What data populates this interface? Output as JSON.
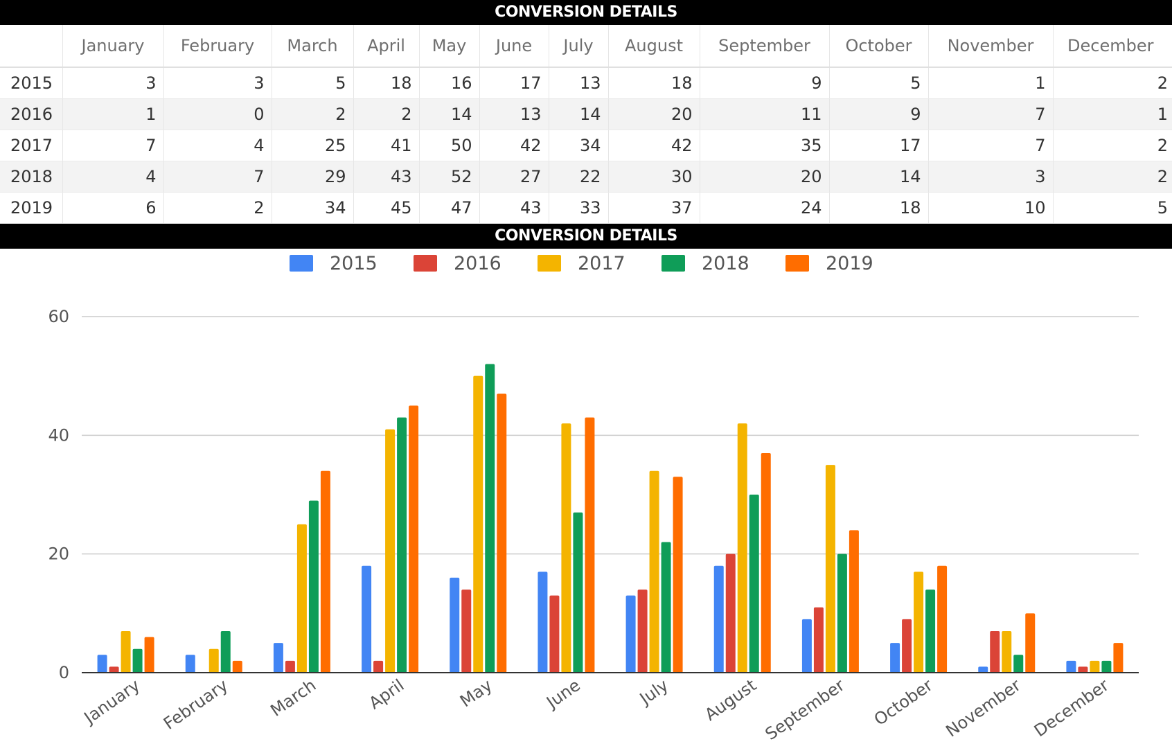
{
  "table_title": "CONVERSION DETAILS",
  "chart_title": "CONVERSION DETAILS",
  "months": [
    "January",
    "February",
    "March",
    "April",
    "May",
    "June",
    "July",
    "August",
    "September",
    "October",
    "November",
    "December"
  ],
  "rows": [
    {
      "year": "2015",
      "values": [
        3,
        3,
        5,
        18,
        16,
        17,
        13,
        18,
        9,
        5,
        1,
        2
      ]
    },
    {
      "year": "2016",
      "values": [
        1,
        0,
        2,
        2,
        14,
        13,
        14,
        20,
        11,
        9,
        7,
        1
      ]
    },
    {
      "year": "2017",
      "values": [
        7,
        4,
        25,
        41,
        50,
        42,
        34,
        42,
        35,
        17,
        7,
        2
      ]
    },
    {
      "year": "2018",
      "values": [
        4,
        7,
        29,
        43,
        52,
        27,
        22,
        30,
        20,
        14,
        3,
        2
      ]
    },
    {
      "year": "2019",
      "values": [
        6,
        2,
        34,
        45,
        47,
        43,
        33,
        37,
        24,
        18,
        10,
        5
      ]
    }
  ],
  "chart_data": {
    "type": "bar",
    "title": "CONVERSION DETAILS",
    "xlabel": "",
    "ylabel": "",
    "categories": [
      "January",
      "February",
      "March",
      "April",
      "May",
      "June",
      "July",
      "August",
      "September",
      "October",
      "November",
      "December"
    ],
    "series": [
      {
        "name": "2015",
        "color": "#4285f4",
        "values": [
          3,
          3,
          5,
          18,
          16,
          17,
          13,
          18,
          9,
          5,
          1,
          2
        ]
      },
      {
        "name": "2016",
        "color": "#db4437",
        "values": [
          1,
          0,
          2,
          2,
          14,
          13,
          14,
          20,
          11,
          9,
          7,
          1
        ]
      },
      {
        "name": "2017",
        "color": "#f4b400",
        "values": [
          7,
          4,
          25,
          41,
          50,
          42,
          34,
          42,
          35,
          17,
          7,
          2
        ]
      },
      {
        "name": "2018",
        "color": "#0f9d58",
        "values": [
          4,
          7,
          29,
          43,
          52,
          27,
          22,
          30,
          20,
          14,
          3,
          2
        ]
      },
      {
        "name": "2019",
        "color": "#ff6d00",
        "values": [
          6,
          2,
          34,
          45,
          47,
          43,
          33,
          37,
          24,
          18,
          10,
          5
        ]
      }
    ],
    "ylim": [
      0,
      60
    ],
    "yticks": [
      0,
      20,
      40,
      60
    ],
    "grid": true,
    "legend": "top-center"
  }
}
